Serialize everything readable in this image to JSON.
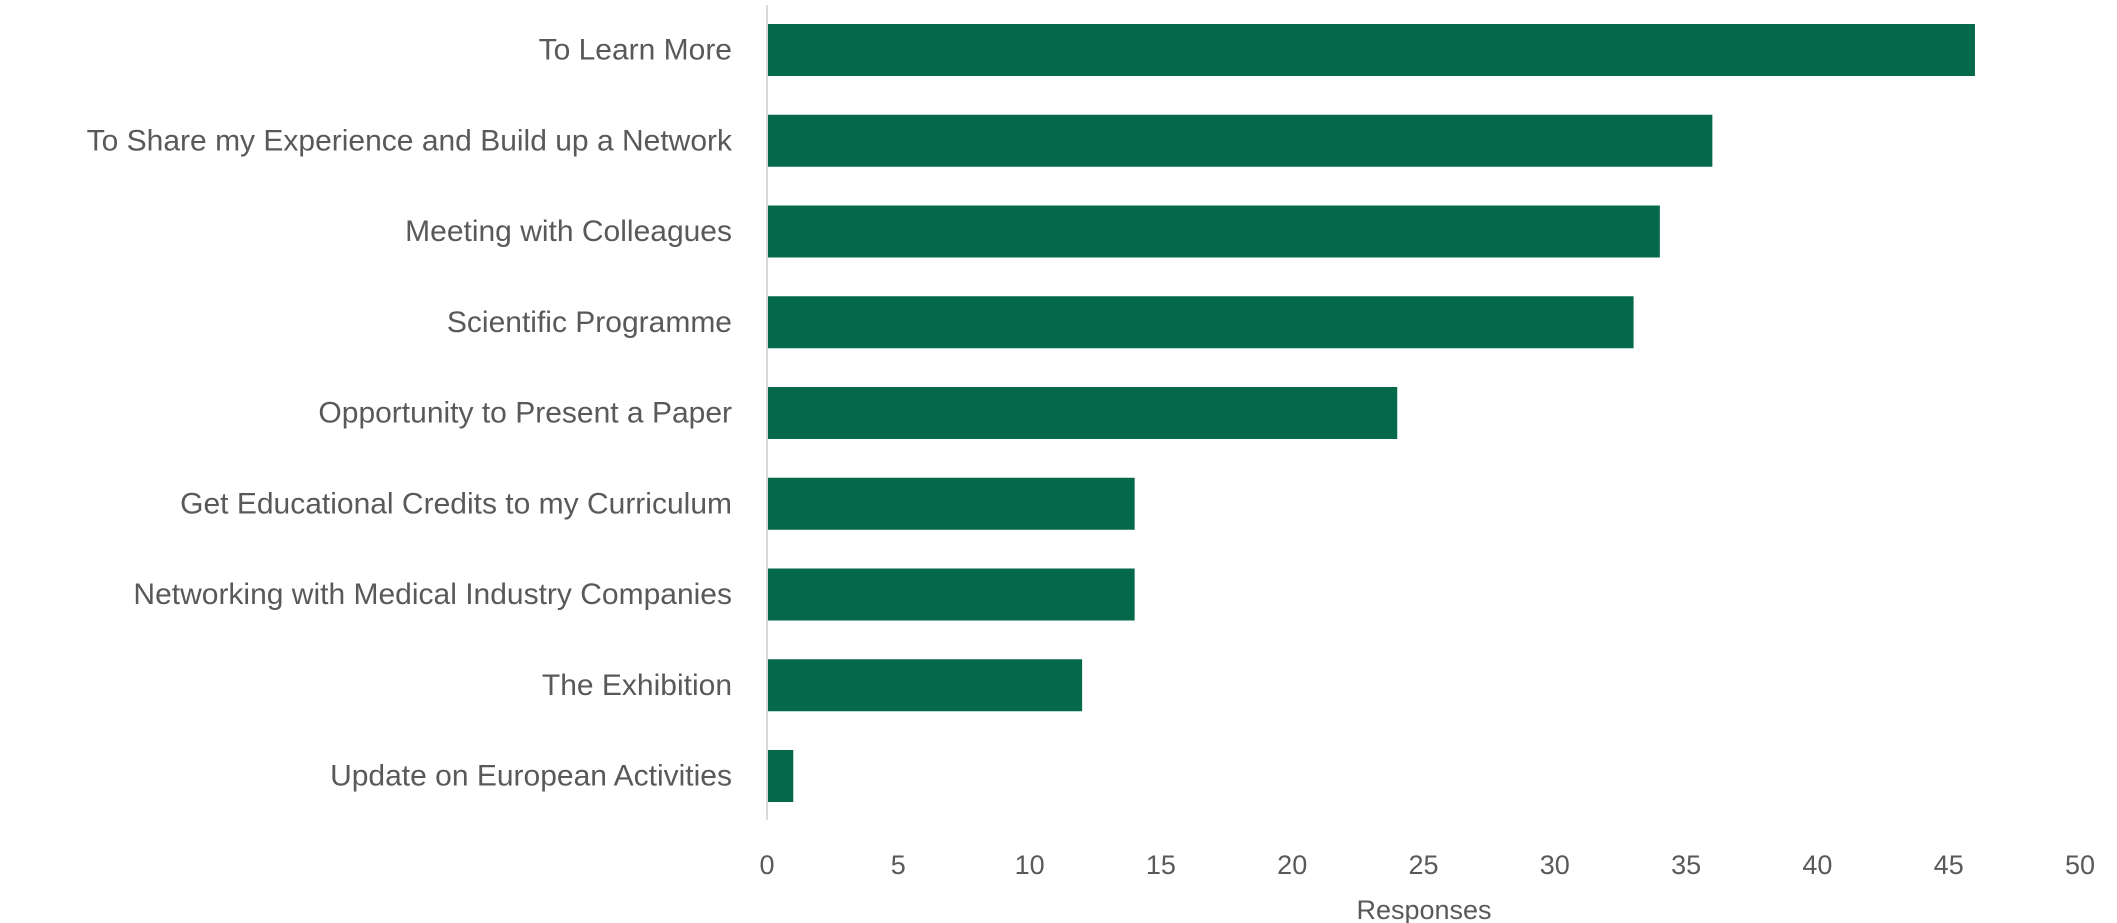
{
  "chart_data": {
    "type": "bar",
    "orientation": "horizontal",
    "title": "",
    "xlabel": "Responses",
    "ylabel": "",
    "categories": [
      "To Learn More",
      "To Share my Experience and Build up a Network",
      "Meeting with Colleagues",
      "Scientific Programme",
      "Opportunity to Present a Paper",
      "Get Educational Credits to my Curriculum",
      "Networking with Medical Industry Companies",
      "The Exhibition",
      "Update on European Activities"
    ],
    "values": [
      46,
      36,
      34,
      33,
      24,
      14,
      14,
      12,
      1
    ],
    "xlim": [
      0,
      50
    ],
    "xticks": [
      "0",
      "5",
      "10",
      "15",
      "20",
      "25",
      "30",
      "35",
      "40",
      "45",
      "50"
    ],
    "grid": false,
    "legend": "none",
    "bar_color": "#04694A",
    "axis_color": "#D9D9D9",
    "text_color": "#595959"
  }
}
